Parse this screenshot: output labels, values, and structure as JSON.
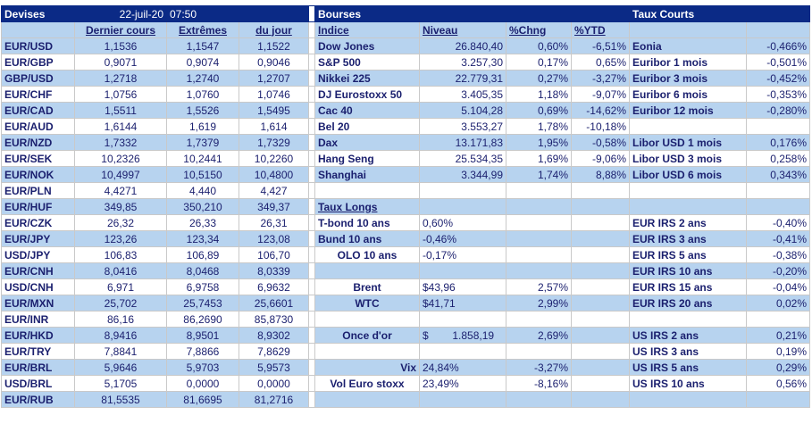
{
  "header": {
    "devises": "Devises",
    "date": "22-juil-20",
    "time": "07:50",
    "bourses": "Bourses",
    "taux_courts": "Taux Courts"
  },
  "columns": {
    "dernier_cours": "Dernier cours",
    "extremes": "Extrêmes",
    "du_jour": "du jour",
    "indice": "Indice",
    "niveau": "Niveau",
    "pct_chng": "%Chng",
    "pct_ytd": "%YTD"
  },
  "taux_longs_title": "Taux Longs",
  "rows": [
    {
      "pair": "EUR/USD",
      "last": "1,1536",
      "high": "1,1547",
      "low": "1,1522",
      "label": "Dow Jones",
      "level": "26.840,40",
      "chng": "0,60%",
      "ytd": "-6,51%",
      "rate_name": "Eonia",
      "rate_value": "-0,466%"
    },
    {
      "pair": "EUR/GBP",
      "last": "0,9071",
      "high": "0,9074",
      "low": "0,9046",
      "label": "S&P 500",
      "level": "3.257,30",
      "chng": "0,17%",
      "ytd": "0,65%",
      "rate_name": "Euribor 1 mois",
      "rate_value": "-0,501%"
    },
    {
      "pair": "GBP/USD",
      "last": "1,2718",
      "high": "1,2740",
      "low": "1,2707",
      "label": "Nikkei 225",
      "level": "22.779,31",
      "chng": "0,27%",
      "ytd": "-3,27%",
      "rate_name": "Euribor 3 mois",
      "rate_value": "-0,452%"
    },
    {
      "pair": "EUR/CHF",
      "last": "1,0756",
      "high": "1,0760",
      "low": "1,0746",
      "label": "DJ Eurostoxx 50",
      "level": "3.405,35",
      "chng": "1,18%",
      "ytd": "-9,07%",
      "rate_name": "Euribor 6 mois",
      "rate_value": "-0,353%"
    },
    {
      "pair": "EUR/CAD",
      "last": "1,5511",
      "high": "1,5526",
      "low": "1,5495",
      "label": "Cac 40",
      "level": "5.104,28",
      "chng": "0,69%",
      "ytd": "-14,62%",
      "rate_name": "Euribor 12 mois",
      "rate_value": "-0,280%"
    },
    {
      "pair": "EUR/AUD",
      "last": "1,6144",
      "high": "1,619",
      "low": "1,614",
      "label": "Bel 20",
      "level": "3.553,27",
      "chng": "1,78%",
      "ytd": "-10,18%",
      "rate_name": "",
      "rate_value": ""
    },
    {
      "pair": "EUR/NZD",
      "last": "1,7332",
      "high": "1,7379",
      "low": "1,7329",
      "label": "Dax",
      "level": "13.171,83",
      "chng": "1,95%",
      "ytd": "-0,58%",
      "rate_name": "Libor USD 1 mois",
      "rate_value": "0,176%"
    },
    {
      "pair": "EUR/SEK",
      "last": "10,2326",
      "high": "10,2441",
      "low": "10,2260",
      "label": "Hang Seng",
      "level": "25.534,35",
      "chng": "1,69%",
      "ytd": "-9,06%",
      "rate_name": "Libor USD 3 mois",
      "rate_value": "0,258%"
    },
    {
      "pair": "EUR/NOK",
      "last": "10,4997",
      "high": "10,5150",
      "low": "10,4800",
      "label": "Shanghai",
      "level": "3.344,99",
      "chng": "1,74%",
      "ytd": "8,88%",
      "rate_name": "Libor USD 6 mois",
      "rate_value": "0,343%"
    },
    {
      "pair": "EUR/PLN",
      "last": "4,4271",
      "high": "4,440",
      "low": "4,427",
      "label": "",
      "level": "",
      "chng": "",
      "ytd": "",
      "rate_name": "",
      "rate_value": ""
    },
    {
      "pair": "EUR/HUF",
      "last": "349,85",
      "high": "350,210",
      "low": "349,37",
      "label": "",
      "level": "",
      "chng": "",
      "ytd": "",
      "rate_name": "",
      "rate_value": ""
    },
    {
      "pair": "EUR/CZK",
      "last": "26,32",
      "high": "26,33",
      "low": "26,31",
      "label": "T-bond 10 ans",
      "level": "0,60%",
      "chng": "",
      "ytd": "",
      "rate_name": "EUR IRS 2 ans",
      "rate_value": "-0,40%"
    },
    {
      "pair": "EUR/JPY",
      "last": "123,26",
      "high": "123,34",
      "low": "123,08",
      "label": "Bund 10 ans",
      "level": "-0,46%",
      "chng": "",
      "ytd": "",
      "rate_name": "EUR IRS 3 ans",
      "rate_value": "-0,41%"
    },
    {
      "pair": "USD/JPY",
      "last": "106,83",
      "high": "106,89",
      "low": "106,70",
      "label": "OLO 10 ans",
      "level": "-0,17%",
      "chng": "",
      "ytd": "",
      "rate_name": "EUR IRS 5 ans",
      "rate_value": "-0,38%"
    },
    {
      "pair": "EUR/CNH",
      "last": "8,0416",
      "high": "8,0468",
      "low": "8,0339",
      "label": "",
      "level": "",
      "chng": "",
      "ytd": "",
      "rate_name": "EUR IRS 10 ans",
      "rate_value": "-0,20%"
    },
    {
      "pair": "USD/CNH",
      "last": "6,971",
      "high": "6,9758",
      "low": "6,9632",
      "label": "Brent",
      "level": "$43,96",
      "chng": "2,57%",
      "ytd": "",
      "rate_name": "EUR IRS 15 ans",
      "rate_value": "-0,04%"
    },
    {
      "pair": "EUR/MXN",
      "last": "25,702",
      "high": "25,7453",
      "low": "25,6601",
      "label": "WTC",
      "level": "$41,71",
      "chng": "2,99%",
      "ytd": "",
      "rate_name": "EUR IRS 20 ans",
      "rate_value": "0,02%"
    },
    {
      "pair": "EUR/INR",
      "last": "86,16",
      "high": "86,2690",
      "low": "85,8730",
      "label": "",
      "level": "",
      "chng": "",
      "ytd": "",
      "rate_name": "",
      "rate_value": ""
    },
    {
      "pair": "EUR/HKD",
      "last": "8,9416",
      "high": "8,9501",
      "low": "8,9302",
      "label": "Once d'or",
      "level": "$        1.858,19",
      "chng": "2,69%",
      "ytd": "",
      "rate_name": "US IRS 2 ans",
      "rate_value": "0,21%"
    },
    {
      "pair": "EUR/TRY",
      "last": "7,8841",
      "high": "7,8866",
      "low": "7,8629",
      "label": "",
      "level": "",
      "chng": "",
      "ytd": "",
      "rate_name": "US IRS 3 ans",
      "rate_value": "0,19%"
    },
    {
      "pair": "EUR/BRL",
      "last": "5,9646",
      "high": "5,9703",
      "low": "5,9573",
      "label": "Vix",
      "level": "24,84%",
      "chng": "-3,27%",
      "ytd": "",
      "rate_name": "US IRS 5 ans",
      "rate_value": "0,29%"
    },
    {
      "pair": "USD/BRL",
      "last": "5,1705",
      "high": "0,0000",
      "low": "0,0000",
      "label": "Vol Euro stoxx",
      "level": "23,49%",
      "chng": "-8,16%",
      "ytd": "",
      "rate_name": "US IRS 10 ans",
      "rate_value": "0,56%"
    },
    {
      "pair": "EUR/RUB",
      "last": "81,5535",
      "high": "81,6695",
      "low": "81,2716",
      "label": "",
      "level": "",
      "chng": "",
      "ytd": "",
      "rate_name": "",
      "rate_value": ""
    }
  ]
}
